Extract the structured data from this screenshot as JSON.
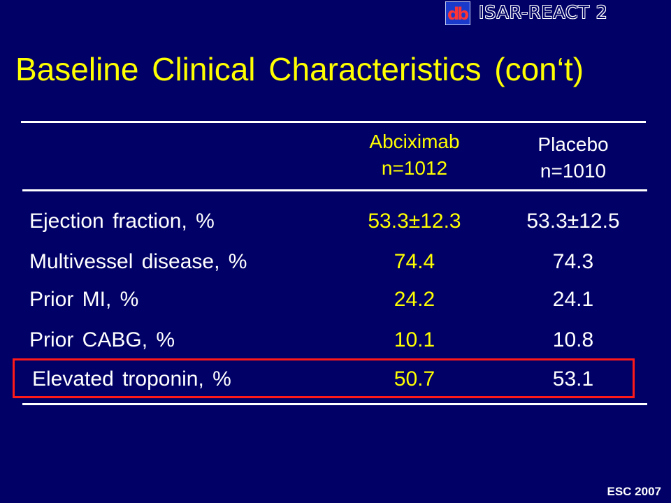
{
  "header": {
    "brand": "ISAR-REACT 2",
    "logo_icon": "db-logo-icon"
  },
  "title": "Baseline Clinical Characteristics (con‘t)",
  "columns": {
    "abciximab": {
      "name": "Abciximab",
      "n": "n=1012"
    },
    "placebo": {
      "name": "Placebo",
      "n": "n=1010"
    }
  },
  "rows": [
    {
      "label": "Ejection fraction, %",
      "abciximab": "53.3±12.3",
      "placebo": "53.3±12.5"
    },
    {
      "label": "Multivessel disease, %",
      "abciximab": "74.4",
      "placebo": "74.3"
    },
    {
      "label": "Prior MI, %",
      "abciximab": "24.2",
      "placebo": "24.1"
    },
    {
      "label": "Prior CABG, %",
      "abciximab": "10.1",
      "placebo": "10.8"
    },
    {
      "label": "Elevated troponin, %",
      "abciximab": "50.7",
      "placebo": "53.1"
    }
  ],
  "footer": "ESC 2007",
  "colors": {
    "background": "#000066",
    "title": "#ffff00",
    "abciximab": "#ffff00",
    "placebo": "#ffffff",
    "highlight": "#ff1a1a"
  }
}
